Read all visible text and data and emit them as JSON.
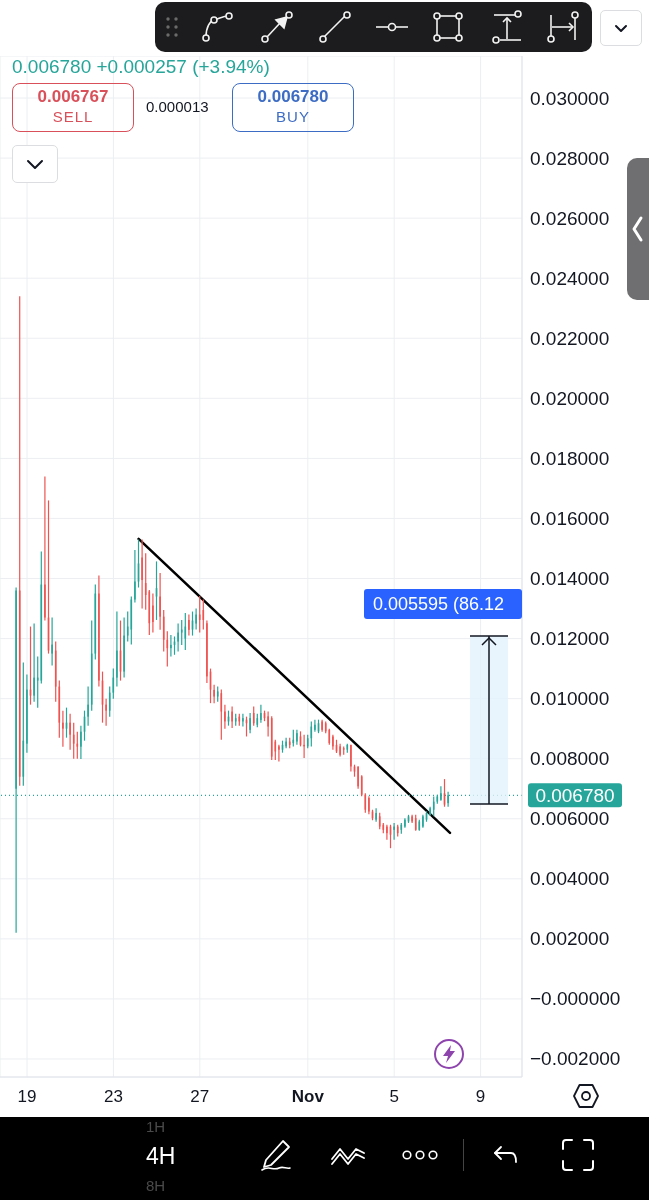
{
  "chart_data": {
    "type": "candlestick",
    "x": [
      "--10-18T12:00",
      "--10-18T16:00",
      "--10-18T20:00",
      "--10-19T00:00",
      "--10-19T04:00",
      "--10-19T08:00",
      "--10-19T12:00",
      "--10-19T16:00",
      "--10-19T20:00",
      "--10-20T00:00",
      "--10-20T04:00",
      "--10-20T08:00",
      "--10-20T12:00",
      "--10-20T16:00",
      "--10-20T20:00",
      "--10-21T00:00",
      "--10-21T04:00",
      "--10-21T08:00",
      "--10-21T12:00",
      "--10-21T16:00",
      "--10-21T20:00",
      "--10-22T00:00",
      "--10-22T04:00",
      "--10-22T08:00",
      "--10-22T12:00",
      "--10-22T16:00",
      "--10-22T20:00",
      "--10-23T00:00",
      "--10-23T04:00",
      "--10-23T08:00",
      "--10-23T12:00",
      "--10-23T16:00",
      "--10-23T20:00",
      "--10-24T00:00",
      "--10-24T04:00",
      "--10-24T08:00",
      "--10-24T12:00",
      "--10-24T16:00",
      "--10-24T20:00",
      "--10-25T00:00",
      "--10-25T04:00",
      "--10-25T08:00",
      "--10-25T12:00",
      "--10-25T16:00",
      "--10-25T20:00",
      "--10-26T00:00",
      "--10-26T04:00",
      "--10-26T08:00",
      "--10-26T12:00",
      "--10-26T16:00",
      "--10-26T20:00",
      "--10-27T00:00",
      "--10-27T04:00",
      "--10-27T08:00",
      "--10-27T12:00",
      "--10-27T16:00",
      "--10-27T20:00",
      "--10-28T00:00",
      "--10-28T04:00",
      "--10-28T08:00",
      "--10-28T12:00",
      "--10-28T16:00",
      "--10-28T20:00",
      "--10-29T00:00",
      "--10-29T04:00",
      "--10-29T08:00",
      "--10-29T12:00",
      "--10-29T16:00",
      "--10-29T20:00",
      "--10-30T00:00",
      "--10-30T04:00",
      "--10-30T08:00",
      "--10-30T12:00",
      "--10-30T16:00",
      "--10-30T20:00",
      "--10-31T00:00",
      "--10-31T04:00",
      "--10-31T08:00",
      "--10-31T12:00",
      "--10-31T16:00",
      "--10-31T20:00",
      "--11-01T00:00",
      "--11-01T04:00",
      "--11-01T08:00",
      "--11-01T12:00",
      "--11-01T16:00",
      "--11-01T20:00",
      "--11-02T00:00",
      "--11-02T04:00",
      "--11-02T08:00",
      "--11-02T12:00",
      "--11-02T16:00",
      "--11-02T20:00",
      "--11-03T00:00",
      "--11-03T04:00",
      "--11-03T08:00",
      "--11-03T12:00",
      "--11-03T16:00",
      "--11-03T20:00",
      "--11-04T00:00",
      "--11-04T04:00",
      "--11-04T08:00",
      "--11-04T12:00",
      "--11-04T16:00",
      "--11-04T20:00",
      "--11-05T00:00",
      "--11-05T04:00",
      "--11-05T08:00",
      "--11-05T12:00",
      "--11-05T16:00",
      "--11-05T20:00",
      "--11-06T00:00",
      "--11-06T04:00",
      "--11-06T08:00",
      "--11-06T12:00",
      "--11-06T16:00",
      "--11-06T20:00",
      "--11-07T00:00",
      "--11-07T04:00",
      "--11-07T08:00",
      "--11-07T12:00"
    ],
    "ohlc": [
      [
        0.007,
        0.0137,
        0.0022,
        0.0136
      ],
      [
        0.0136,
        0.0234,
        0.0071,
        0.0074
      ],
      [
        0.0074,
        0.0112,
        0.0071,
        0.0086
      ],
      [
        0.0085,
        0.0108,
        0.0082,
        0.0103
      ],
      [
        0.0103,
        0.0124,
        0.0098,
        0.0101
      ],
      [
        0.0101,
        0.0125,
        0.0099,
        0.0107
      ],
      [
        0.0106,
        0.0114,
        0.0097,
        0.0107
      ],
      [
        0.0106,
        0.0149,
        0.0105,
        0.0138
      ],
      [
        0.0138,
        0.0174,
        0.0126,
        0.0127
      ],
      [
        0.0127,
        0.0166,
        0.0115,
        0.0116
      ],
      [
        0.0115,
        0.0127,
        0.0111,
        0.0118
      ],
      [
        0.0116,
        0.0119,
        0.0099,
        0.0104
      ],
      [
        0.0104,
        0.0106,
        0.0087,
        0.0092
      ],
      [
        0.0092,
        0.0096,
        0.0084,
        0.009
      ],
      [
        0.009,
        0.0097,
        0.0087,
        0.0092
      ],
      [
        0.0092,
        0.0095,
        0.0083,
        0.0088
      ],
      [
        0.0088,
        0.0092,
        0.008,
        0.0085
      ],
      [
        0.0085,
        0.0089,
        0.008,
        0.0084
      ],
      [
        0.0084,
        0.0091,
        0.00799,
        0.0089
      ],
      [
        0.0089,
        0.0096,
        0.0086,
        0.0094
      ],
      [
        0.0094,
        0.0104,
        0.0091,
        0.0098
      ],
      [
        0.0098,
        0.0126,
        0.0096,
        0.0115
      ],
      [
        0.0115,
        0.0138,
        0.0113,
        0.0135
      ],
      [
        0.0135,
        0.0141,
        0.0104,
        0.0106
      ],
      [
        0.0106,
        0.0109,
        0.0092,
        0.0098
      ],
      [
        0.0098,
        0.01,
        0.0091,
        0.0096
      ],
      [
        0.0096,
        0.0104,
        0.0094,
        0.0102
      ],
      [
        0.0102,
        0.011,
        0.01,
        0.0107
      ],
      [
        0.0107,
        0.0129,
        0.0104,
        0.0116
      ],
      [
        0.0116,
        0.0126,
        0.0106,
        0.0109
      ],
      [
        0.0109,
        0.0127,
        0.0107,
        0.0121
      ],
      [
        0.0121,
        0.0129,
        0.0119,
        0.0124
      ],
      [
        0.0123,
        0.0134,
        0.0118,
        0.0133
      ],
      [
        0.0133,
        0.01495,
        0.0132,
        0.0139
      ],
      [
        0.0139,
        0.0153,
        0.0137,
        0.0145
      ],
      [
        0.0147,
        0.0153,
        0.013,
        0.01395
      ],
      [
        0.01385,
        0.01484,
        0.01296,
        0.01345
      ],
      [
        0.01357,
        0.01362,
        0.01212,
        0.01251
      ],
      [
        0.0131,
        0.0135,
        0.0122,
        0.01255
      ],
      [
        0.0134,
        0.01457,
        0.01262,
        0.01368
      ],
      [
        0.0134,
        0.01418,
        0.01229,
        0.01273
      ],
      [
        0.01273,
        0.01295,
        0.01157,
        0.01196
      ],
      [
        0.01196,
        0.01224,
        0.01107,
        0.01168
      ],
      [
        0.01168,
        0.01212,
        0.0114,
        0.01179
      ],
      [
        0.01179,
        0.01207,
        0.01146,
        0.0119
      ],
      [
        0.0119,
        0.0125,
        0.01157,
        0.0122
      ],
      [
        0.0122,
        0.01262,
        0.01179,
        0.0123
      ],
      [
        0.012,
        0.01285,
        0.01162,
        0.0124
      ],
      [
        0.01262,
        0.0128,
        0.0121,
        0.01229
      ],
      [
        0.0123,
        0.0129,
        0.0121,
        0.0126
      ],
      [
        0.0125,
        0.013,
        0.0123,
        0.0128
      ],
      [
        0.0128,
        0.01342,
        0.0122,
        0.01262
      ],
      [
        0.01295,
        0.0133,
        0.0123,
        0.01262
      ],
      [
        0.01251,
        0.0126,
        0.01052,
        0.01074
      ],
      [
        0.0109,
        0.011,
        0.00985,
        0.0103
      ],
      [
        0.01029,
        0.01046,
        0.00985,
        0.01007
      ],
      [
        0.01007,
        0.0104,
        0.0099,
        0.01024
      ],
      [
        0.01018,
        0.0103,
        0.00863,
        0.00957
      ],
      [
        0.00957,
        0.0098,
        0.009,
        0.00924
      ],
      [
        0.00924,
        0.0096,
        0.0091,
        0.0094
      ],
      [
        0.00957,
        0.00974,
        0.00902,
        0.00924
      ],
      [
        0.00924,
        0.0095,
        0.0091,
        0.00935
      ],
      [
        0.0094,
        0.0095,
        0.0091,
        0.00924
      ],
      [
        0.00924,
        0.0095,
        0.00907,
        0.00935
      ],
      [
        0.0093,
        0.0094,
        0.00874,
        0.00918
      ],
      [
        0.00896,
        0.00952,
        0.00885,
        0.00935
      ],
      [
        0.00952,
        0.00974,
        0.0091,
        0.00918
      ],
      [
        0.00913,
        0.0095,
        0.00905,
        0.00935
      ],
      [
        0.00929,
        0.0098,
        0.0092,
        0.00952
      ],
      [
        0.00952,
        0.0096,
        0.00925,
        0.00935
      ],
      [
        0.00941,
        0.00957,
        0.00874,
        0.00907
      ],
      [
        0.00935,
        0.00941,
        0.00796,
        0.00807
      ],
      [
        0.00857,
        0.00863,
        0.00796,
        0.00824
      ],
      [
        0.00841,
        0.00846,
        0.00791,
        0.0083
      ],
      [
        0.0083,
        0.0086,
        0.0082,
        0.00846
      ],
      [
        0.00841,
        0.0087,
        0.00835,
        0.00857
      ],
      [
        0.00857,
        0.0087,
        0.00835,
        0.00846
      ],
      [
        0.00852,
        0.00896,
        0.00841,
        0.00863
      ],
      [
        0.00857,
        0.00896,
        0.00846,
        0.00885
      ],
      [
        0.00874,
        0.00891,
        0.00841,
        0.00846
      ],
      [
        0.00846,
        0.0088,
        0.00802,
        0.00841
      ],
      [
        0.00841,
        0.0088,
        0.00835,
        0.00868
      ],
      [
        0.00868,
        0.00924,
        0.00841,
        0.00907
      ],
      [
        0.00896,
        0.0093,
        0.0089,
        0.00913
      ],
      [
        0.00891,
        0.0093,
        0.00885,
        0.00918
      ],
      [
        0.00924,
        0.0093,
        0.0089,
        0.00896
      ],
      [
        0.00918,
        0.00924,
        0.00885,
        0.00891
      ],
      [
        0.00896,
        0.009,
        0.00846,
        0.00852
      ],
      [
        0.00874,
        0.0088,
        0.0083,
        0.00841
      ],
      [
        0.00846,
        0.00863,
        0.00819,
        0.00824
      ],
      [
        0.00841,
        0.0085,
        0.00807,
        0.00813
      ],
      [
        0.00835,
        0.00841,
        0.00813,
        0.0083
      ],
      [
        0.0083,
        0.0085,
        0.0082,
        0.00846
      ],
      [
        0.00846,
        0.00846,
        0.00757,
        0.00774
      ],
      [
        0.00774,
        0.0078,
        0.0074,
        0.00757
      ],
      [
        0.00774,
        0.00774,
        0.007,
        0.00708
      ],
      [
        0.00741,
        0.00745,
        0.00675,
        0.0068
      ],
      [
        0.0068,
        0.00685,
        0.0062,
        0.0063
      ],
      [
        0.00669,
        0.00675,
        0.00615,
        0.00624
      ],
      [
        0.00624,
        0.0063,
        0.00595,
        0.00602
      ],
      [
        0.00597,
        0.00635,
        0.0059,
        0.00619
      ],
      [
        0.00608,
        0.0062,
        0.00565,
        0.00574
      ],
      [
        0.0058,
        0.00586,
        0.00552,
        0.00563
      ],
      [
        0.00574,
        0.0058,
        0.0053,
        0.00552
      ],
      [
        0.00574,
        0.0058,
        0.00502,
        0.00547
      ],
      [
        0.00563,
        0.00586,
        0.0053,
        0.00574
      ],
      [
        0.00574,
        0.0058,
        0.00541,
        0.00552
      ],
      [
        0.00563,
        0.00586,
        0.0055,
        0.0058
      ],
      [
        0.00574,
        0.00602,
        0.0057,
        0.00597
      ],
      [
        0.00591,
        0.00613,
        0.00586,
        0.00608
      ],
      [
        0.00608,
        0.00613,
        0.00586,
        0.00591
      ],
      [
        0.00602,
        0.00613,
        0.0056,
        0.00563
      ],
      [
        0.00563,
        0.00597,
        0.0056,
        0.00591
      ],
      [
        0.00574,
        0.00613,
        0.0057,
        0.00608
      ],
      [
        0.00597,
        0.00625,
        0.0059,
        0.00619
      ],
      [
        0.00613,
        0.0064,
        0.0061,
        0.00635
      ],
      [
        0.0063,
        0.00674,
        0.00608,
        0.00657
      ],
      [
        0.00657,
        0.0068,
        0.0065,
        0.00674
      ],
      [
        0.00663,
        0.00708,
        0.0066,
        0.00685
      ],
      [
        0.00685,
        0.00732,
        0.0064,
        0.00647
      ],
      [
        0.00652,
        0.0069,
        0.0064,
        0.00678
      ]
    ],
    "colors": [
      "#26a69a",
      "#ef5350",
      "#26a69a",
      "#26a69a",
      "#ef5350",
      "#26a69a",
      "#26a69a",
      "#26a69a",
      "#ef5350",
      "#ef5350",
      "#26a69a",
      "#ef5350",
      "#ef5350",
      "#ef5350",
      "#26a69a",
      "#ef5350",
      "#ef5350",
      "#ef5350",
      "#26a69a",
      "#26a69a",
      "#26a69a",
      "#26a69a",
      "#26a69a",
      "#ef5350",
      "#ef5350",
      "#ef5350",
      "#26a69a",
      "#26a69a",
      "#26a69a",
      "#ef5350",
      "#26a69a",
      "#26a69a",
      "#26a69a",
      "#26a69a",
      "#26a69a",
      "#ef5350",
      "#ef5350",
      "#ef5350",
      "#ef5350",
      "#26a69a",
      "#ef5350",
      "#ef5350",
      "#ef5350",
      "#26a69a",
      "#26a69a",
      "#26a69a",
      "#26a69a",
      "#26a69a",
      "#ef5350",
      "#26a69a",
      "#26a69a",
      "#ef5350",
      "#ef5350",
      "#ef5350",
      "#ef5350",
      "#ef5350",
      "#26a69a",
      "#ef5350",
      "#ef5350",
      "#26a69a",
      "#ef5350",
      "#26a69a",
      "#ef5350",
      "#26a69a",
      "#ef5350",
      "#26a69a",
      "#ef5350",
      "#26a69a",
      "#26a69a",
      "#ef5350",
      "#ef5350",
      "#ef5350",
      "#ef5350",
      "#ef5350",
      "#26a69a",
      "#26a69a",
      "#ef5350",
      "#26a69a",
      "#26a69a",
      "#ef5350",
      "#ef5350",
      "#26a69a",
      "#26a69a",
      "#26a69a",
      "#26a69a",
      "#ef5350",
      "#ef5350",
      "#ef5350",
      "#ef5350",
      "#ef5350",
      "#ef5350",
      "#ef5350",
      "#26a69a",
      "#ef5350",
      "#ef5350",
      "#ef5350",
      "#ef5350",
      "#ef5350",
      "#ef5350",
      "#ef5350",
      "#26a69a",
      "#ef5350",
      "#ef5350",
      "#ef5350",
      "#ef5350",
      "#26a69a",
      "#ef5350",
      "#26a69a",
      "#26a69a",
      "#26a69a",
      "#ef5350",
      "#ef5350",
      "#26a69a",
      "#26a69a",
      "#26a69a",
      "#26a69a",
      "#26a69a",
      "#26a69a",
      "#26a69a",
      "#ef5350",
      "#26a69a"
    ],
    "series": [
      {
        "type": "line",
        "x": [
          "--10-24T04:00",
          "--11-07T14:00"
        ],
        "values": [
          0.01532,
          0.00553
        ],
        "color": "#000000"
      }
    ],
    "xlim": [
      "--10-17T18:00",
      "--11-10T22:00"
    ],
    "xticks": [
      {
        "value": "--10-19",
        "label": "19"
      },
      {
        "value": "--10-23",
        "label": "23"
      },
      {
        "value": "--10-27",
        "label": "27"
      },
      {
        "value": "--11-01",
        "label": "Nov"
      },
      {
        "value": "--11-05",
        "label": "5"
      },
      {
        "value": "--11-09",
        "label": "9"
      }
    ],
    "ylim": [
      -0.0026,
      0.0314
    ],
    "yticks": [
      {
        "value": 0.03,
        "label": "0.030000"
      },
      {
        "value": 0.028,
        "label": "0.028000"
      },
      {
        "value": 0.026,
        "label": "0.026000"
      },
      {
        "value": 0.024,
        "label": "0.024000"
      },
      {
        "value": 0.022,
        "label": "0.022000"
      },
      {
        "value": 0.02,
        "label": "0.020000"
      },
      {
        "value": 0.018,
        "label": "0.018000"
      },
      {
        "value": 0.016,
        "label": "0.016000"
      },
      {
        "value": 0.014,
        "label": "0.014000"
      },
      {
        "value": 0.012,
        "label": "0.012000"
      },
      {
        "value": 0.01,
        "label": "0.010000"
      },
      {
        "value": 0.008,
        "label": "0.008000"
      },
      {
        "value": 0.006,
        "label": "0.006000"
      },
      {
        "value": 0.004,
        "label": "0.004000"
      },
      {
        "value": 0.002,
        "label": "0.002000"
      },
      {
        "value": 0,
        "label": "−0.000000"
      },
      {
        "value": -0.002,
        "label": "−0.002000"
      }
    ],
    "grid": true,
    "ref_lines": [
      {
        "axis": "y",
        "value": 0.00678,
        "label": "0.006780",
        "color": "#26a69a",
        "line_style": "dotted"
      }
    ],
    "annotations": [
      "0.006780 +0.000257 (+3.94%)",
      "0.006767",
      "SELL",
      "0.000013",
      "0.006780",
      "BUY",
      "1H",
      "4H",
      "8H",
      "0.005595 (86.12"
    ]
  }
}
